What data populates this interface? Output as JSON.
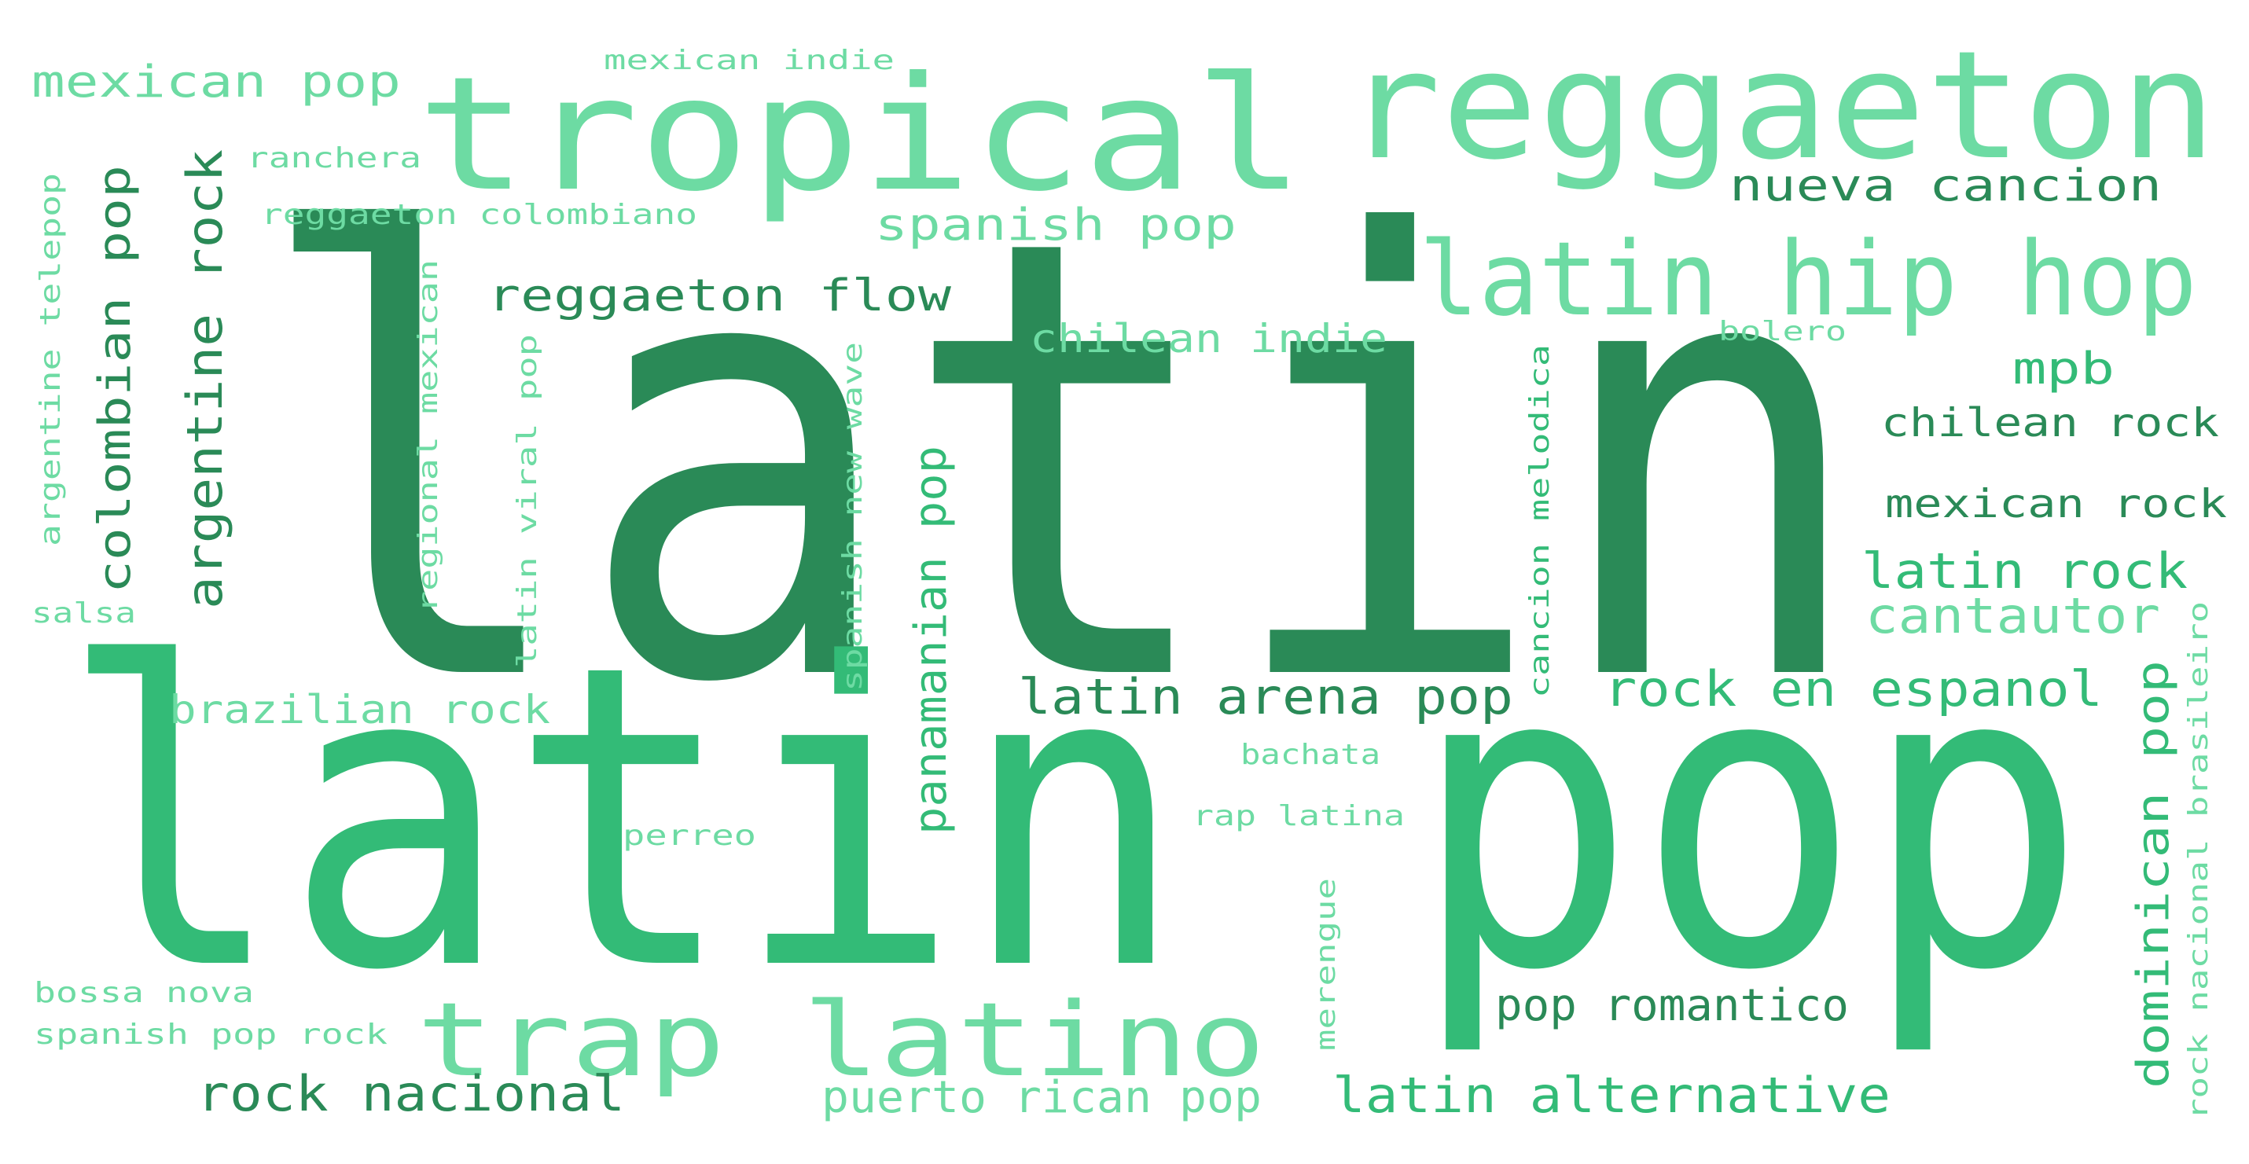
{
  "word_cloud": {
    "palette": {
      "dark": "#2a8a57",
      "mid": "#33bb77",
      "light": "#6ddba3"
    },
    "words": [
      {
        "id": "latin",
        "text": "latin",
        "tone": "dark"
      },
      {
        "id": "latin-pop",
        "text": "latin pop",
        "tone": "mid"
      },
      {
        "id": "tropical",
        "text": "tropical",
        "tone": "light"
      },
      {
        "id": "reggaeton",
        "text": "reggaeton",
        "tone": "light"
      },
      {
        "id": "latin-hip-hop",
        "text": "latin hip hop",
        "tone": "light"
      },
      {
        "id": "trap-latino",
        "text": "trap latino",
        "tone": "light"
      },
      {
        "id": "mexican-pop",
        "text": "mexican pop",
        "tone": "light"
      },
      {
        "id": "mexican-indie",
        "text": "mexican indie",
        "tone": "light"
      },
      {
        "id": "ranchera",
        "text": "ranchera",
        "tone": "light"
      },
      {
        "id": "reggaeton-colombiano",
        "text": "reggaeton colombiano",
        "tone": "light"
      },
      {
        "id": "nueva-cancion",
        "text": "nueva cancion",
        "tone": "dark"
      },
      {
        "id": "spanish-pop",
        "text": "spanish pop",
        "tone": "light"
      },
      {
        "id": "reggaeton-flow",
        "text": "reggaeton flow",
        "tone": "dark"
      },
      {
        "id": "chilean-indie",
        "text": "chilean indie",
        "tone": "light"
      },
      {
        "id": "bolero",
        "text": "bolero",
        "tone": "light"
      },
      {
        "id": "mpb",
        "text": "mpb",
        "tone": "mid"
      },
      {
        "id": "chilean-rock",
        "text": "chilean rock",
        "tone": "dark"
      },
      {
        "id": "mexican-rock",
        "text": "mexican rock",
        "tone": "dark"
      },
      {
        "id": "latin-rock",
        "text": "latin rock",
        "tone": "mid"
      },
      {
        "id": "cantautor",
        "text": "cantautor",
        "tone": "light"
      },
      {
        "id": "rock-en-espanol",
        "text": "rock en espanol",
        "tone": "mid"
      },
      {
        "id": "latin-arena-pop",
        "text": "latin arena pop",
        "tone": "dark"
      },
      {
        "id": "brazilian-rock",
        "text": "brazilian rock",
        "tone": "light"
      },
      {
        "id": "bachata",
        "text": "bachata",
        "tone": "light"
      },
      {
        "id": "rap-latina",
        "text": "rap latina",
        "tone": "light"
      },
      {
        "id": "perreo",
        "text": "perreo",
        "tone": "light"
      },
      {
        "id": "pop-romantico",
        "text": "pop romantico",
        "tone": "dark"
      },
      {
        "id": "bossa-nova",
        "text": "bossa nova",
        "tone": "light"
      },
      {
        "id": "spanish-pop-rock",
        "text": "spanish pop rock",
        "tone": "light"
      },
      {
        "id": "rock-nacional",
        "text": "rock nacional",
        "tone": "dark"
      },
      {
        "id": "puerto-rican-pop",
        "text": "puerto rican pop",
        "tone": "light"
      },
      {
        "id": "latin-alternative",
        "text": "latin alternative",
        "tone": "mid"
      },
      {
        "id": "salsa",
        "text": "salsa",
        "tone": "light"
      },
      {
        "id": "argentine-telepop",
        "text": "argentine telepop",
        "tone": "light"
      },
      {
        "id": "colombian-pop",
        "text": "colombian pop",
        "tone": "dark"
      },
      {
        "id": "argentine-rock",
        "text": "argentine rock",
        "tone": "dark"
      },
      {
        "id": "regional-mexican",
        "text": "regional mexican",
        "tone": "light"
      },
      {
        "id": "latin-viral-pop",
        "text": "latin viral pop",
        "tone": "light"
      },
      {
        "id": "spanish-new-wave",
        "text": "spanish new wave",
        "tone": "light"
      },
      {
        "id": "panamanian-pop",
        "text": "panamanian pop",
        "tone": "mid"
      },
      {
        "id": "cancion-melodica",
        "text": "cancion melodica",
        "tone": "mid"
      },
      {
        "id": "merengue",
        "text": "merengue",
        "tone": "light"
      },
      {
        "id": "dominican-pop",
        "text": "dominican pop",
        "tone": "mid"
      },
      {
        "id": "rock-nacional-brasileiro",
        "text": "rock nacional brasileiro",
        "tone": "light"
      }
    ]
  }
}
